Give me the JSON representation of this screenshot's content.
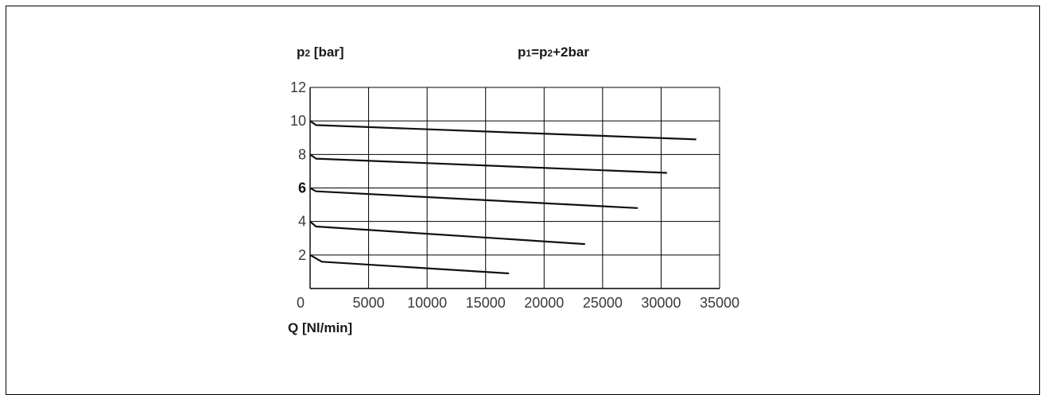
{
  "chart_data": {
    "type": "line",
    "ylabel_main": "p",
    "ylabel_sub": "2",
    "ylabel_unit": " [bar]",
    "annotation": {
      "p1_main": "p",
      "p1_sub": "1",
      "equals": "=",
      "p2_main": "p",
      "p2_sub": "2",
      "rest": "+2bar"
    },
    "xlabel": "Q [Nl/min]",
    "xlim": [
      0,
      35000
    ],
    "ylim": [
      0,
      12
    ],
    "grid": true,
    "x_ticks": [
      {
        "value": 0,
        "label": "0"
      },
      {
        "value": 5000,
        "label": "5000"
      },
      {
        "value": 10000,
        "label": "10000"
      },
      {
        "value": 15000,
        "label": "15000"
      },
      {
        "value": 20000,
        "label": "20000"
      },
      {
        "value": 25000,
        "label": "25000"
      },
      {
        "value": 30000,
        "label": "30000"
      },
      {
        "value": 35000,
        "label": "35000"
      }
    ],
    "y_ticks": [
      {
        "value": 2,
        "label": "2",
        "bold": false
      },
      {
        "value": 4,
        "label": "4",
        "bold": false
      },
      {
        "value": 6,
        "label": "6",
        "bold": true
      },
      {
        "value": 8,
        "label": "8",
        "bold": false
      },
      {
        "value": 10,
        "label": "10",
        "bold": false
      },
      {
        "value": 12,
        "label": "12",
        "bold": false
      }
    ],
    "series": [
      {
        "points": [
          [
            0,
            10
          ],
          [
            500,
            9.75
          ],
          [
            33000,
            8.9
          ]
        ]
      },
      {
        "points": [
          [
            0,
            8
          ],
          [
            500,
            7.75
          ],
          [
            30500,
            6.9
          ]
        ]
      },
      {
        "points": [
          [
            0,
            6
          ],
          [
            500,
            5.8
          ],
          [
            28000,
            4.8
          ]
        ]
      },
      {
        "points": [
          [
            0,
            4
          ],
          [
            500,
            3.7
          ],
          [
            23500,
            2.65
          ]
        ]
      },
      {
        "points": [
          [
            0,
            2
          ],
          [
            1000,
            1.6
          ],
          [
            17000,
            0.9
          ]
        ]
      }
    ]
  }
}
